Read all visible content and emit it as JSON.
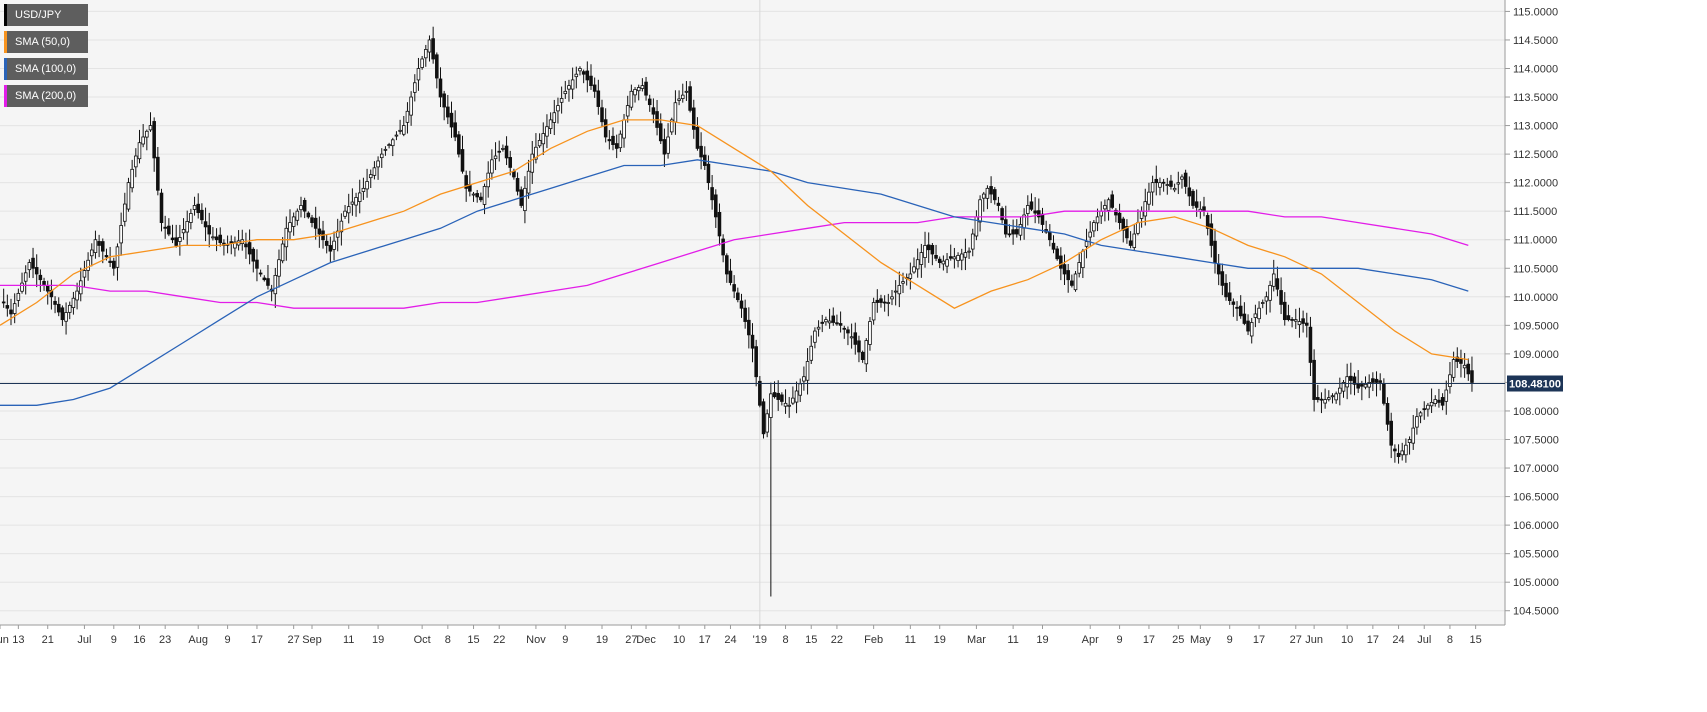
{
  "legend": [
    {
      "label": "USD/JPY",
      "color": "#000000"
    },
    {
      "label": "SMA (50,0)",
      "color": "#f7931e"
    },
    {
      "label": "SMA (100,0)",
      "color": "#2a63b8"
    },
    {
      "label": "SMA (200,0)",
      "color": "#e21de8"
    }
  ],
  "price_label": "108.48100",
  "chart_data": {
    "type": "candlestick",
    "title": "",
    "xlabel": "",
    "ylabel": "",
    "ylim": [
      104.25,
      115.2
    ],
    "y_ticks": [
      "104.5000",
      "105.0000",
      "105.5000",
      "106.0000",
      "106.5000",
      "107.0000",
      "107.5000",
      "108.0000",
      "108.5000",
      "109.0000",
      "109.5000",
      "110.0000",
      "110.5000",
      "111.0000",
      "111.5000",
      "112.0000",
      "112.5000",
      "113.0000",
      "113.5000",
      "114.0000",
      "114.5000",
      "115.0000"
    ],
    "x_ticks": [
      {
        "label": "Jun",
        "day": 0
      },
      {
        "label": "13",
        "day": 5
      },
      {
        "label": "21",
        "day": 13
      },
      {
        "label": "Jul",
        "day": 23
      },
      {
        "label": "9",
        "day": 31
      },
      {
        "label": "16",
        "day": 38
      },
      {
        "label": "23",
        "day": 45
      },
      {
        "label": "Aug",
        "day": 54
      },
      {
        "label": "9",
        "day": 62
      },
      {
        "label": "17",
        "day": 70
      },
      {
        "label": "27",
        "day": 80
      },
      {
        "label": "Sep",
        "day": 85
      },
      {
        "label": "11",
        "day": 95
      },
      {
        "label": "19",
        "day": 103
      },
      {
        "label": "Oct",
        "day": 115
      },
      {
        "label": "8",
        "day": 122
      },
      {
        "label": "15",
        "day": 129
      },
      {
        "label": "22",
        "day": 136
      },
      {
        "label": "Nov",
        "day": 146
      },
      {
        "label": "9",
        "day": 154
      },
      {
        "label": "19",
        "day": 164
      },
      {
        "label": "27",
        "day": 172
      },
      {
        "label": "Dec",
        "day": 176
      },
      {
        "label": "10",
        "day": 185
      },
      {
        "label": "17",
        "day": 192
      },
      {
        "label": "24",
        "day": 199
      },
      {
        "label": "'19",
        "day": 207
      },
      {
        "label": "8",
        "day": 214
      },
      {
        "label": "15",
        "day": 221
      },
      {
        "label": "22",
        "day": 228
      },
      {
        "label": "Feb",
        "day": 238
      },
      {
        "label": "11",
        "day": 248
      },
      {
        "label": "19",
        "day": 256
      },
      {
        "label": "Mar",
        "day": 266
      },
      {
        "label": "11",
        "day": 276
      },
      {
        "label": "19",
        "day": 284
      },
      {
        "label": "Apr",
        "day": 297
      },
      {
        "label": "9",
        "day": 305
      },
      {
        "label": "17",
        "day": 313
      },
      {
        "label": "25",
        "day": 321
      },
      {
        "label": "May",
        "day": 327
      },
      {
        "label": "9",
        "day": 335
      },
      {
        "label": "17",
        "day": 343
      },
      {
        "label": "27",
        "day": 353
      },
      {
        "label": "Jun",
        "day": 358
      },
      {
        "label": "10",
        "day": 367
      },
      {
        "label": "17",
        "day": 374
      },
      {
        "label": "24",
        "day": 381
      },
      {
        "label": "Jul",
        "day": 388
      },
      {
        "label": "8",
        "day": 395
      },
      {
        "label": "15",
        "day": 402
      }
    ],
    "last_price": 108.481,
    "price_anchors": [
      [
        0,
        110.0
      ],
      [
        3,
        109.7
      ],
      [
        8,
        110.6
      ],
      [
        14,
        110.0
      ],
      [
        17,
        109.6
      ],
      [
        21,
        110.1
      ],
      [
        26,
        111.0
      ],
      [
        31,
        110.5
      ],
      [
        35,
        112.0
      ],
      [
        38,
        112.7
      ],
      [
        41,
        113.0
      ],
      [
        44,
        111.3
      ],
      [
        48,
        110.9
      ],
      [
        53,
        111.6
      ],
      [
        57,
        111.1
      ],
      [
        61,
        110.9
      ],
      [
        66,
        111.0
      ],
      [
        70,
        110.5
      ],
      [
        74,
        110.1
      ],
      [
        78,
        111.2
      ],
      [
        82,
        111.6
      ],
      [
        86,
        111.2
      ],
      [
        90,
        110.8
      ],
      [
        94,
        111.5
      ],
      [
        99,
        111.9
      ],
      [
        104,
        112.5
      ],
      [
        110,
        113.0
      ],
      [
        114,
        114.0
      ],
      [
        117,
        114.5
      ],
      [
        120,
        113.5
      ],
      [
        124,
        112.8
      ],
      [
        127,
        111.9
      ],
      [
        131,
        111.7
      ],
      [
        134,
        112.4
      ],
      [
        137,
        112.6
      ],
      [
        140,
        112.1
      ],
      [
        142,
        111.6
      ],
      [
        145,
        112.5
      ],
      [
        150,
        113.1
      ],
      [
        154,
        113.6
      ],
      [
        158,
        114.0
      ],
      [
        162,
        113.6
      ],
      [
        165,
        112.8
      ],
      [
        168,
        112.6
      ],
      [
        172,
        113.6
      ],
      [
        175,
        113.7
      ],
      [
        178,
        113.2
      ],
      [
        181,
        112.5
      ],
      [
        184,
        113.4
      ],
      [
        187,
        113.6
      ],
      [
        190,
        112.6
      ],
      [
        192,
        112.3
      ],
      [
        195,
        111.4
      ],
      [
        198,
        110.4
      ],
      [
        202,
        109.8
      ],
      [
        205,
        109.1
      ],
      [
        208,
        107.6
      ],
      [
        210,
        108.3
      ],
      [
        212,
        108.2
      ],
      [
        215,
        108.1
      ],
      [
        219,
        108.6
      ],
      [
        222,
        109.4
      ],
      [
        225,
        109.6
      ],
      [
        229,
        109.5
      ],
      [
        232,
        109.3
      ],
      [
        235,
        108.9
      ],
      [
        238,
        109.9
      ],
      [
        242,
        109.9
      ],
      [
        245,
        110.2
      ],
      [
        248,
        110.4
      ],
      [
        252,
        110.9
      ],
      [
        256,
        110.6
      ],
      [
        260,
        110.7
      ],
      [
        264,
        110.8
      ],
      [
        267,
        111.7
      ],
      [
        269,
        111.9
      ],
      [
        272,
        111.6
      ],
      [
        274,
        111.1
      ],
      [
        277,
        111.1
      ],
      [
        280,
        111.6
      ],
      [
        283,
        111.4
      ],
      [
        286,
        111.0
      ],
      [
        289,
        110.5
      ],
      [
        292,
        110.2
      ],
      [
        295,
        110.8
      ],
      [
        298,
        111.3
      ],
      [
        302,
        111.7
      ],
      [
        305,
        111.3
      ],
      [
        308,
        110.9
      ],
      [
        311,
        111.5
      ],
      [
        314,
        112.0
      ],
      [
        317,
        112.0
      ],
      [
        320,
        111.9
      ],
      [
        322,
        112.1
      ],
      [
        325,
        111.6
      ],
      [
        328,
        111.5
      ],
      [
        331,
        110.6
      ],
      [
        334,
        110.0
      ],
      [
        337,
        109.8
      ],
      [
        340,
        109.4
      ],
      [
        342,
        109.7
      ],
      [
        345,
        110.0
      ],
      [
        347,
        110.4
      ],
      [
        350,
        109.6
      ],
      [
        353,
        109.6
      ],
      [
        356,
        109.5
      ],
      [
        358,
        108.2
      ],
      [
        361,
        108.2
      ],
      [
        364,
        108.3
      ],
      [
        367,
        108.6
      ],
      [
        370,
        108.4
      ],
      [
        373,
        108.5
      ],
      [
        376,
        108.5
      ],
      [
        379,
        107.4
      ],
      [
        381,
        107.2
      ],
      [
        384,
        107.5
      ],
      [
        386,
        107.9
      ],
      [
        389,
        108.1
      ],
      [
        391,
        108.2
      ],
      [
        393,
        108.1
      ],
      [
        396,
        108.9
      ],
      [
        399,
        108.8
      ],
      [
        401,
        108.5
      ]
    ],
    "sma50": [
      [
        0,
        109.5
      ],
      [
        10,
        109.9
      ],
      [
        20,
        110.4
      ],
      [
        30,
        110.7
      ],
      [
        40,
        110.8
      ],
      [
        50,
        110.9
      ],
      [
        60,
        110.9
      ],
      [
        70,
        111.0
      ],
      [
        80,
        111.0
      ],
      [
        90,
        111.1
      ],
      [
        100,
        111.3
      ],
      [
        110,
        111.5
      ],
      [
        120,
        111.8
      ],
      [
        130,
        112.0
      ],
      [
        140,
        112.2
      ],
      [
        150,
        112.6
      ],
      [
        160,
        112.9
      ],
      [
        170,
        113.1
      ],
      [
        180,
        113.1
      ],
      [
        190,
        113.0
      ],
      [
        200,
        112.6
      ],
      [
        210,
        112.2
      ],
      [
        220,
        111.6
      ],
      [
        230,
        111.1
      ],
      [
        240,
        110.6
      ],
      [
        250,
        110.2
      ],
      [
        260,
        109.8
      ],
      [
        270,
        110.1
      ],
      [
        280,
        110.3
      ],
      [
        290,
        110.6
      ],
      [
        300,
        111.0
      ],
      [
        310,
        111.3
      ],
      [
        320,
        111.4
      ],
      [
        330,
        111.2
      ],
      [
        340,
        110.9
      ],
      [
        350,
        110.7
      ],
      [
        360,
        110.4
      ],
      [
        370,
        109.9
      ],
      [
        380,
        109.4
      ],
      [
        390,
        109.0
      ],
      [
        400,
        108.9
      ]
    ],
    "sma100": [
      [
        0,
        108.1
      ],
      [
        10,
        108.1
      ],
      [
        20,
        108.2
      ],
      [
        30,
        108.4
      ],
      [
        40,
        108.8
      ],
      [
        50,
        109.2
      ],
      [
        60,
        109.6
      ],
      [
        70,
        110.0
      ],
      [
        80,
        110.3
      ],
      [
        90,
        110.6
      ],
      [
        100,
        110.8
      ],
      [
        110,
        111.0
      ],
      [
        120,
        111.2
      ],
      [
        130,
        111.5
      ],
      [
        140,
        111.7
      ],
      [
        150,
        111.9
      ],
      [
        160,
        112.1
      ],
      [
        170,
        112.3
      ],
      [
        180,
        112.3
      ],
      [
        190,
        112.4
      ],
      [
        200,
        112.3
      ],
      [
        210,
        112.2
      ],
      [
        220,
        112.0
      ],
      [
        230,
        111.9
      ],
      [
        240,
        111.8
      ],
      [
        250,
        111.6
      ],
      [
        260,
        111.4
      ],
      [
        270,
        111.3
      ],
      [
        280,
        111.2
      ],
      [
        290,
        111.1
      ],
      [
        300,
        110.9
      ],
      [
        310,
        110.8
      ],
      [
        320,
        110.7
      ],
      [
        330,
        110.6
      ],
      [
        340,
        110.5
      ],
      [
        350,
        110.5
      ],
      [
        360,
        110.5
      ],
      [
        370,
        110.5
      ],
      [
        380,
        110.4
      ],
      [
        390,
        110.3
      ],
      [
        400,
        110.1
      ]
    ],
    "sma200": [
      [
        0,
        110.2
      ],
      [
        10,
        110.2
      ],
      [
        20,
        110.2
      ],
      [
        30,
        110.1
      ],
      [
        40,
        110.1
      ],
      [
        50,
        110.0
      ],
      [
        60,
        109.9
      ],
      [
        70,
        109.9
      ],
      [
        80,
        109.8
      ],
      [
        90,
        109.8
      ],
      [
        100,
        109.8
      ],
      [
        110,
        109.8
      ],
      [
        120,
        109.9
      ],
      [
        130,
        109.9
      ],
      [
        140,
        110.0
      ],
      [
        150,
        110.1
      ],
      [
        160,
        110.2
      ],
      [
        170,
        110.4
      ],
      [
        180,
        110.6
      ],
      [
        190,
        110.8
      ],
      [
        200,
        111.0
      ],
      [
        210,
        111.1
      ],
      [
        220,
        111.2
      ],
      [
        230,
        111.3
      ],
      [
        240,
        111.3
      ],
      [
        250,
        111.3
      ],
      [
        260,
        111.4
      ],
      [
        270,
        111.4
      ],
      [
        280,
        111.4
      ],
      [
        290,
        111.5
      ],
      [
        300,
        111.5
      ],
      [
        310,
        111.5
      ],
      [
        320,
        111.5
      ],
      [
        330,
        111.5
      ],
      [
        340,
        111.5
      ],
      [
        350,
        111.4
      ],
      [
        360,
        111.4
      ],
      [
        370,
        111.3
      ],
      [
        380,
        111.2
      ],
      [
        390,
        111.1
      ],
      [
        400,
        110.9
      ]
    ]
  }
}
